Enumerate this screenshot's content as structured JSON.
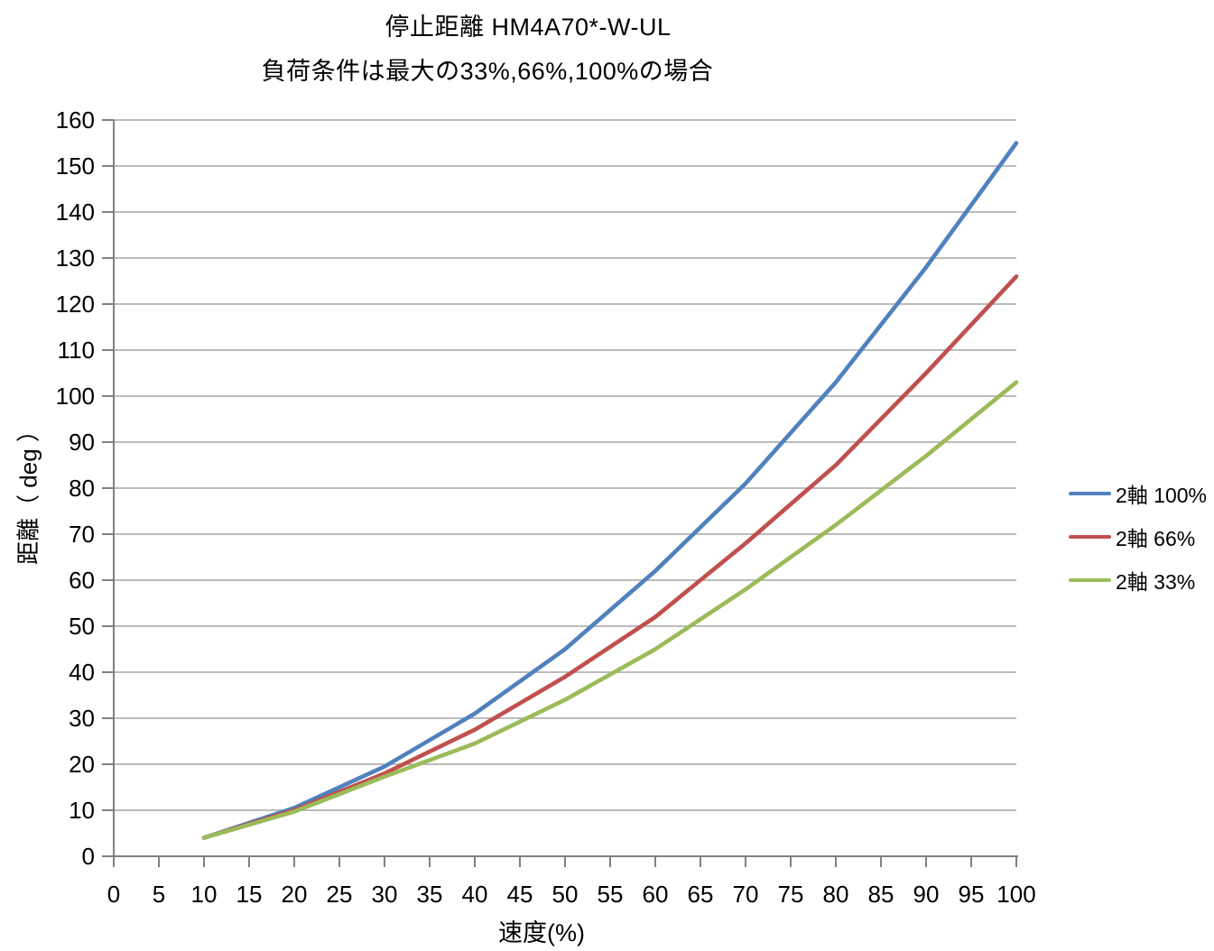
{
  "chart_data": {
    "type": "line",
    "title": "停止距離 HM4A70*-W-UL",
    "subtitle": "負荷条件は最大の33%,66%,100%の場合",
    "xlabel": "速度(%)",
    "ylabel": "距離（ deg ）",
    "xlim": [
      0,
      100
    ],
    "ylim": [
      0,
      160
    ],
    "x_ticks": [
      0,
      5,
      10,
      15,
      20,
      25,
      30,
      35,
      40,
      45,
      50,
      55,
      60,
      65,
      70,
      75,
      80,
      85,
      90,
      95,
      100
    ],
    "y_ticks": [
      0,
      10,
      20,
      30,
      40,
      50,
      60,
      70,
      80,
      90,
      100,
      110,
      120,
      130,
      140,
      150,
      160
    ],
    "grid": "horizontal-on",
    "legend_position": "right",
    "x": [
      10,
      20,
      30,
      40,
      50,
      60,
      70,
      80,
      90,
      100
    ],
    "series": [
      {
        "name": "2軸 100%",
        "color": "#4F81BD",
        "values": [
          4,
          10.5,
          19.5,
          31,
          45,
          62,
          81,
          103,
          128,
          155
        ]
      },
      {
        "name": "2軸 66%",
        "color": "#C0504D",
        "values": [
          4,
          10,
          18,
          27.5,
          39,
          52,
          68,
          85,
          105,
          126
        ]
      },
      {
        "name": "2軸 33%",
        "color": "#9BBB59",
        "values": [
          4,
          9.7,
          17.3,
          24.5,
          34,
          45,
          58,
          72,
          87,
          103
        ]
      }
    ],
    "colors": {
      "gridline": "#A6A6A6",
      "axis": "#808080",
      "text": "#000000"
    }
  }
}
